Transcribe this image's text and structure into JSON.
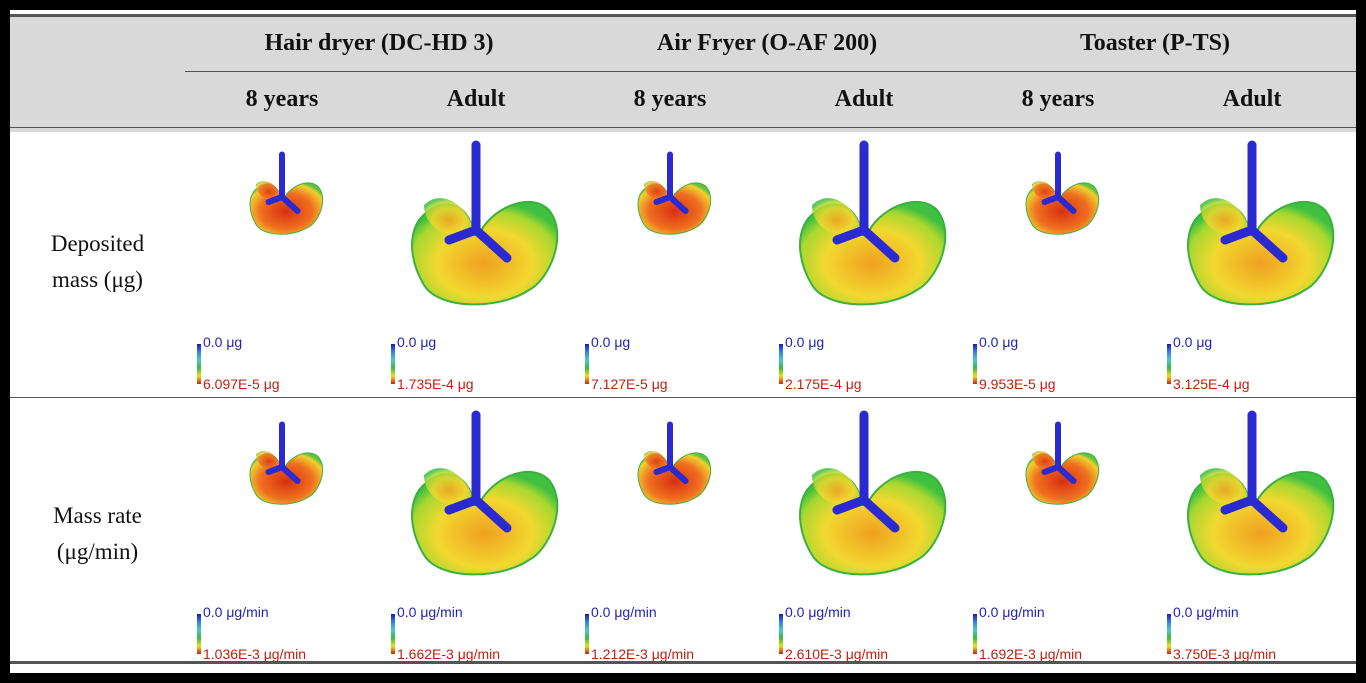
{
  "header": {
    "groups": [
      "Hair dryer (DC-HD 3)",
      "Air Fryer (O-AF 200)",
      "Toaster (P-TS)"
    ],
    "ages": [
      "8 years",
      "Adult",
      "8 years",
      "Adult",
      "8 years",
      "Adult"
    ]
  },
  "rows": [
    {
      "label_line1": "Deposited",
      "label_line2": "mass (μg)",
      "legend_min": [
        "0.0 μg",
        "0.0 μg",
        "0.0 μg",
        "0.0 μg",
        "0.0 μg",
        "0.0 μg"
      ],
      "legend_max": [
        "6.097E-5 μg",
        "1.735E-4 μg",
        "7.127E-5 μg",
        "2.175E-4 μg",
        "9.953E-5 μg",
        "3.125E-4 μg"
      ]
    },
    {
      "label_line1": "Mass rate",
      "label_line2": "(μg/min)",
      "legend_min": [
        "0.0 μg/min",
        "0.0 μg/min",
        "0.0 μg/min",
        "0.0 μg/min",
        "0.0 μg/min",
        "0.0 μg/min"
      ],
      "legend_max": [
        "1.036E-3 μg/min",
        "1.662E-3 μg/min",
        "1.212E-3 μg/min",
        "2.610E-3 μg/min",
        "1.692E-3 μg/min",
        "3.750E-3 μg/min"
      ]
    }
  ],
  "colors": {
    "min": "#2323b8",
    "max": "#c02010",
    "airway": "#2a2ad0",
    "header_bg": "#d9d9d9"
  }
}
